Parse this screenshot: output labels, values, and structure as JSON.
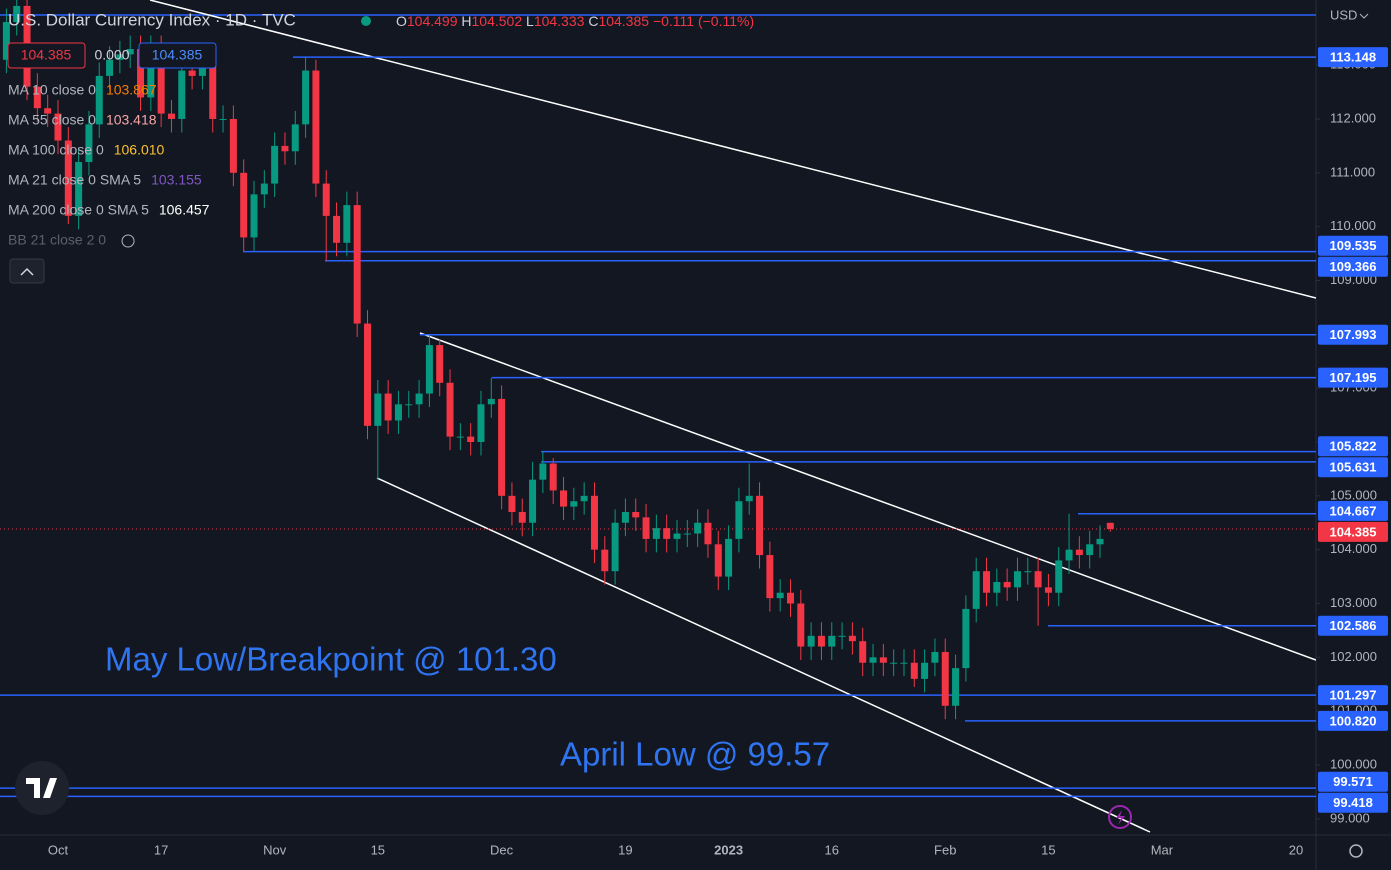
{
  "chart_data": {
    "type": "candlestick",
    "title": "U.S. Dollar Currency Index · 1D · TVC",
    "ohlc_labels": [
      "O",
      "H",
      "L",
      "C"
    ],
    "change": "−0.111 (−0.11%)",
    "bid": 104.385,
    "spread": {
      "value": 0,
      "label": "0.000"
    },
    "ask": 104.385,
    "indicators": [
      {
        "name": "MA 10 close 0",
        "value": 103.867,
        "color": "#f57c00"
      },
      {
        "name": "MA 55 close 0",
        "value": 103.418,
        "color": "#f8a5a5"
      },
      {
        "name": "MA 100 close 0",
        "value": {
          "value": 106.01,
          "label": "106.010"
        },
        "color": "#fbc02d"
      },
      {
        "name": "MA 21 close 0 SMA 5",
        "value": 103.155,
        "color": "#7e57c2"
      },
      {
        "name": "MA 200 close 0 SMA 5",
        "value": 106.457,
        "color": "#ffffff"
      },
      {
        "name": "BB 21 close 2 0",
        "color": "#5d606b"
      }
    ],
    "currency": "USD",
    "up_color": "#089981",
    "down_color": "#f23645",
    "level_color": "#2962ff",
    "annotations": [
      {
        "text": "May Low/Breakpoint @ 101.30",
        "color": "#2f74f0"
      },
      {
        "text": "April Low @ 99.57",
        "color": "#2f74f0"
      }
    ],
    "levels": [
      113.148,
      109.535,
      109.366,
      107.993,
      107.195,
      105.822,
      105.631,
      104.667,
      102.586,
      101.297,
      {
        "value": 100.82,
        "label": "100.820"
      },
      99.571,
      99.418
    ],
    "ylim": [
      98.7,
      114.21
    ],
    "yticks": [
      {
        "value": 99,
        "label": "99.000"
      },
      {
        "value": 100,
        "label": "100.000"
      },
      {
        "value": 101,
        "label": "101.000"
      },
      {
        "value": 102,
        "label": "102.000"
      },
      {
        "value": 103,
        "label": "103.000"
      },
      {
        "value": 104,
        "label": "104.000"
      },
      {
        "value": 105,
        "label": "105.000"
      },
      {
        "value": 106,
        "label": "106.000"
      },
      {
        "value": 107,
        "label": "107.000"
      },
      {
        "value": 108,
        "label": "108.000"
      },
      {
        "value": 109,
        "label": "109.000"
      },
      {
        "value": 110,
        "label": "110.000"
      },
      {
        "value": 111,
        "label": "111.000"
      },
      {
        "value": 112,
        "label": "112.000"
      },
      {
        "value": 113,
        "label": "113.000"
      }
    ],
    "categories": [
      null,
      null,
      null,
      null,
      null,
      "Oct",
      null,
      null,
      null,
      null,
      null,
      null,
      null,
      null,
      null,
      "17",
      null,
      null,
      null,
      null,
      null,
      null,
      null,
      null,
      null,
      null,
      "Nov",
      null,
      null,
      null,
      null,
      null,
      null,
      null,
      null,
      null,
      "15",
      null,
      null,
      null,
      null,
      null,
      null,
      null,
      null,
      null,
      null,
      null,
      "Dec",
      null,
      null,
      null,
      null,
      null,
      null,
      null,
      null,
      null,
      null,
      null,
      "19",
      null,
      null,
      null,
      null,
      null,
      null,
      null,
      null,
      null,
      "2023",
      null,
      null,
      null,
      null,
      null,
      null,
      null,
      null,
      null,
      "16",
      null,
      null,
      null,
      null,
      null,
      null,
      null,
      null,
      null,
      null,
      "Feb",
      null,
      null,
      null,
      null,
      null,
      null,
      null,
      null,
      null,
      "15",
      null,
      null,
      null,
      null,
      null,
      null,
      null,
      null,
      null,
      null,
      "Mar",
      null,
      null,
      null,
      null,
      null,
      null,
      null,
      null,
      null,
      null,
      null,
      null,
      "20"
    ],
    "open": [
      113.1,
      113.8,
      114.1,
      112.6,
      112.2,
      112.1,
      111.6,
      110.2,
      111.2,
      111.9,
      112.8,
      113.1,
      113.2,
      113.3,
      112.4,
      113.3,
      112.1,
      112.0,
      112.9,
      112.8,
      113.0,
      112.0,
      112.0,
      111.0,
      109.8,
      110.6,
      110.8,
      111.5,
      111.4,
      111.9,
      112.9,
      110.8,
      110.2,
      109.7,
      110.4,
      108.2,
      106.3,
      106.9,
      106.4,
      106.7,
      106.7,
      106.9,
      107.8,
      107.1,
      106.1,
      106.1,
      106.0,
      106.7,
      106.8,
      105.0,
      104.7,
      104.5,
      105.3,
      105.6,
      105.1,
      104.8,
      104.9,
      105.0,
      104.0,
      103.6,
      104.5,
      104.7,
      104.6,
      104.2,
      104.4,
      104.2,
      104.3,
      104.3,
      104.5,
      104.1,
      103.5,
      104.2,
      104.9,
      105.0,
      103.9,
      103.1,
      103.2,
      103.0,
      102.2,
      102.4,
      102.2,
      102.4,
      102.4,
      102.3,
      101.9,
      102.0,
      101.9,
      101.9,
      101.9,
      101.6,
      101.9,
      102.1,
      101.1,
      101.8,
      102.9,
      103.6,
      103.2,
      103.4,
      103.3,
      103.6,
      103.6,
      103.3,
      103.2,
      103.8,
      104.0,
      103.9,
      104.1,
      104.499,
      null,
      null,
      null,
      null,
      null,
      null,
      null,
      null,
      null,
      null,
      null,
      null,
      null,
      null,
      null,
      null,
      null,
      null
    ],
    "high": [
      114.05,
      114.35,
      114.35,
      112.85,
      112.45,
      112.35,
      111.85,
      111.45,
      112.15,
      113.05,
      113.35,
      113.45,
      113.55,
      113.55,
      113.55,
      113.55,
      112.35,
      113.15,
      113.15,
      113.25,
      113.25,
      112.25,
      112.25,
      111.25,
      110.85,
      111.05,
      111.75,
      111.75,
      112.15,
      113.148,
      113.1,
      111.05,
      110.45,
      110.65,
      110.65,
      108.45,
      107.15,
      107.15,
      106.95,
      106.95,
      107.15,
      107.993,
      107.9,
      107.35,
      106.35,
      106.35,
      106.95,
      107.195,
      107.05,
      105.25,
      104.95,
      105.631,
      105.822,
      105.7,
      105.35,
      105.15,
      105.25,
      105.25,
      104.25,
      104.75,
      104.95,
      104.95,
      104.85,
      104.65,
      104.65,
      104.55,
      104.55,
      104.75,
      104.75,
      104.35,
      104.45,
      105.15,
      105.6,
      105.25,
      104.15,
      103.45,
      103.45,
      103.25,
      102.65,
      102.65,
      102.65,
      102.65,
      102.65,
      102.55,
      102.25,
      102.25,
      102.15,
      102.15,
      102.15,
      102.15,
      102.35,
      102.35,
      102.05,
      103.15,
      103.85,
      103.85,
      103.65,
      103.65,
      103.85,
      103.85,
      103.85,
      103.55,
      104.05,
      104.667,
      104.25,
      104.35,
      104.45,
      104.502,
      null,
      null,
      null,
      null,
      null,
      null,
      null,
      null,
      null,
      null,
      null,
      null,
      null,
      null,
      null,
      null,
      null,
      null
    ],
    "low": [
      112.85,
      113.55,
      112.35,
      111.95,
      111.85,
      111.35,
      110.05,
      109.95,
      110.95,
      111.65,
      112.55,
      112.85,
      112.95,
      112.15,
      112.15,
      111.85,
      111.75,
      111.75,
      112.55,
      112.55,
      111.75,
      111.75,
      110.75,
      109.535,
      109.55,
      110.35,
      110.55,
      111.15,
      111.15,
      111.65,
      110.55,
      109.366,
      109.45,
      109.45,
      107.95,
      106.05,
      105.3,
      106.15,
      106.15,
      106.45,
      106.45,
      106.65,
      106.85,
      105.85,
      105.85,
      105.75,
      105.75,
      106.45,
      104.75,
      104.45,
      104.25,
      104.25,
      105.05,
      104.85,
      104.55,
      104.55,
      104.65,
      103.75,
      103.35,
      103.35,
      104.25,
      104.35,
      103.95,
      103.95,
      103.95,
      103.95,
      104.05,
      104.05,
      103.85,
      103.25,
      103.25,
      103.95,
      104.65,
      103.65,
      102.85,
      102.85,
      102.75,
      101.95,
      101.95,
      101.95,
      101.95,
      102.15,
      102.05,
      101.65,
      101.65,
      101.65,
      101.65,
      101.65,
      101.45,
      101.35,
      101.65,
      100.85,
      100.85,
      101.55,
      102.65,
      102.95,
      102.95,
      103.05,
      103.05,
      103.35,
      102.586,
      102.95,
      102.95,
      103.55,
      103.65,
      103.65,
      103.85,
      104.333,
      null,
      null,
      null,
      null,
      null,
      null,
      null,
      null,
      null,
      null,
      null,
      null,
      null,
      null,
      null,
      null,
      null,
      null
    ],
    "close": [
      113.8,
      114.1,
      112.6,
      112.2,
      112.1,
      111.6,
      110.2,
      111.2,
      111.9,
      112.8,
      113.1,
      113.2,
      113.3,
      112.4,
      113.3,
      112.1,
      112.0,
      112.9,
      112.8,
      113.0,
      112.0,
      112.0,
      111.0,
      109.8,
      110.6,
      110.8,
      111.5,
      111.4,
      111.9,
      112.9,
      110.8,
      110.2,
      109.7,
      110.4,
      108.2,
      106.3,
      106.9,
      106.4,
      106.7,
      106.7,
      106.9,
      107.8,
      107.1,
      106.1,
      106.1,
      106.0,
      106.7,
      106.8,
      105.0,
      104.7,
      104.5,
      105.3,
      105.6,
      105.1,
      104.8,
      104.9,
      105.0,
      104.0,
      103.6,
      104.5,
      104.7,
      104.6,
      104.2,
      104.4,
      104.2,
      104.3,
      104.3,
      104.5,
      104.1,
      103.5,
      104.2,
      104.9,
      105.0,
      103.9,
      103.1,
      103.2,
      103.0,
      102.2,
      102.4,
      102.2,
      102.4,
      102.4,
      102.3,
      101.9,
      102.0,
      101.9,
      101.9,
      101.9,
      101.6,
      101.9,
      102.1,
      101.1,
      101.8,
      102.9,
      103.6,
      103.2,
      103.4,
      103.3,
      103.6,
      103.6,
      103.3,
      103.2,
      103.8,
      104.0,
      103.9,
      104.1,
      104.2,
      104.385,
      null,
      null,
      null,
      null,
      null,
      null,
      null,
      null,
      null,
      null,
      null,
      null,
      null,
      null,
      null,
      null,
      null,
      null
    ]
  }
}
